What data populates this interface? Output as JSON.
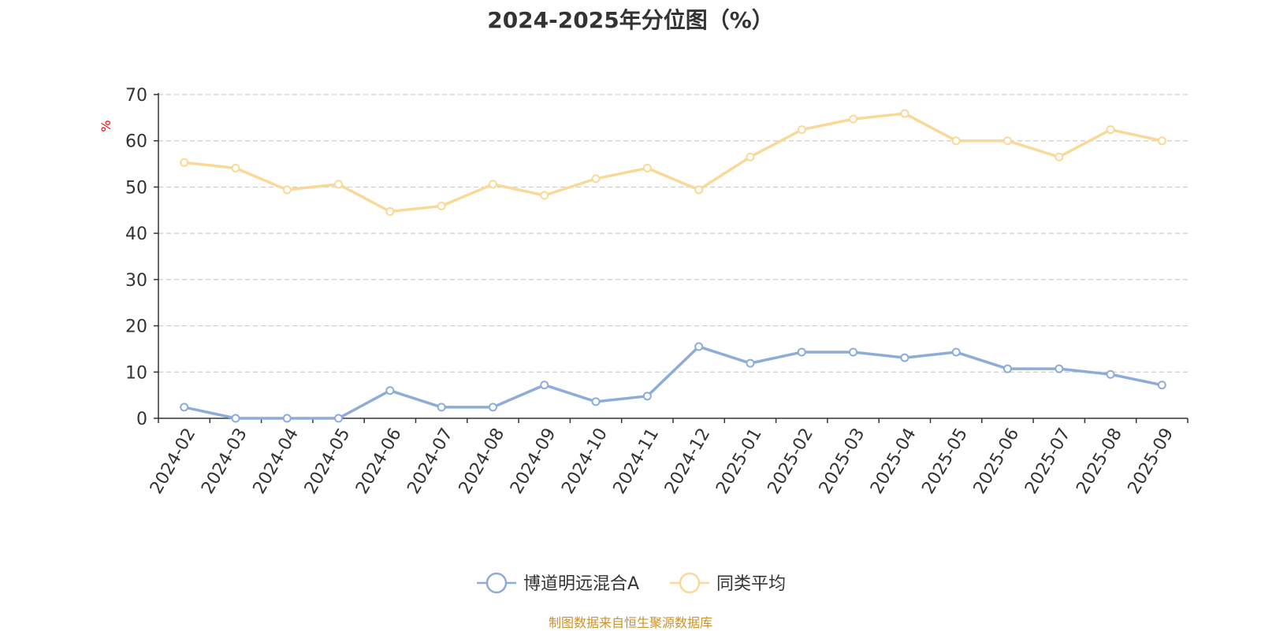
{
  "chart_data": {
    "type": "line",
    "title": "2024-2025年分位图（%）",
    "ylabel": "%",
    "ylim": [
      0,
      70
    ],
    "yticks": [
      0,
      10,
      20,
      30,
      40,
      50,
      60,
      70
    ],
    "grid": true,
    "legend_position": "bottom",
    "categories": [
      "2024-02",
      "2024-03",
      "2024-04",
      "2024-05",
      "2024-06",
      "2024-07",
      "2024-08",
      "2024-09",
      "2024-10",
      "2024-11",
      "2024-12",
      "2025-01",
      "2025-02",
      "2025-03",
      "2025-04",
      "2025-05",
      "2025-06",
      "2025-07",
      "2025-08",
      "2025-09"
    ],
    "series": [
      {
        "name": "博道明远混合A",
        "color": "#8eacd8",
        "values": [
          2.4,
          0,
          0,
          0,
          6.0,
          2.4,
          2.4,
          7.2,
          3.6,
          4.8,
          15.5,
          11.9,
          14.3,
          14.3,
          13.1,
          14.3,
          10.7,
          10.7,
          9.5,
          7.2
        ]
      },
      {
        "name": "同类平均",
        "color": "#fad897",
        "values": [
          55.3,
          54.1,
          49.4,
          50.6,
          44.7,
          45.9,
          50.6,
          48.2,
          51.8,
          54.1,
          49.4,
          56.5,
          62.4,
          64.7,
          65.9,
          60.0,
          60.0,
          56.5,
          62.4,
          60.0
        ]
      }
    ],
    "source": "制图数据来自恒生聚源数据库"
  }
}
